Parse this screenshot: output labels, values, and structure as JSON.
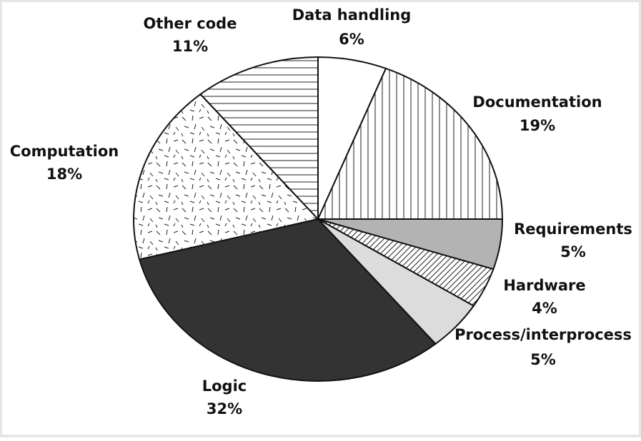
{
  "chart_data": {
    "type": "pie",
    "title": "",
    "slices": [
      {
        "label": "Data handling",
        "value": 6,
        "value_label": "6%",
        "fill": "white",
        "color": "#ffffff"
      },
      {
        "label": "Documentation",
        "value": 19,
        "value_label": "19%",
        "fill": "vertical-lines",
        "color": "#ffffff"
      },
      {
        "label": "Requirements",
        "value": 5,
        "value_label": "5%",
        "fill": "solid",
        "color": "#b3b3b3"
      },
      {
        "label": "Hardware",
        "value": 4,
        "value_label": "4%",
        "fill": "diagonal-lines",
        "color": "#ffffff"
      },
      {
        "label": "Process/interprocess",
        "value": 5,
        "value_label": "5%",
        "fill": "solid",
        "color": "#dcdcdc"
      },
      {
        "label": "Logic",
        "value": 32,
        "value_label": "32%",
        "fill": "solid",
        "color": "#333333"
      },
      {
        "label": "Computation",
        "value": 18,
        "value_label": "18%",
        "fill": "dashes",
        "color": "#ffffff"
      },
      {
        "label": "Other code",
        "value": 11,
        "value_label": "11%",
        "fill": "horizontal-lines",
        "color": "#ffffff"
      }
    ],
    "legend": "none",
    "labels_outside": true
  }
}
